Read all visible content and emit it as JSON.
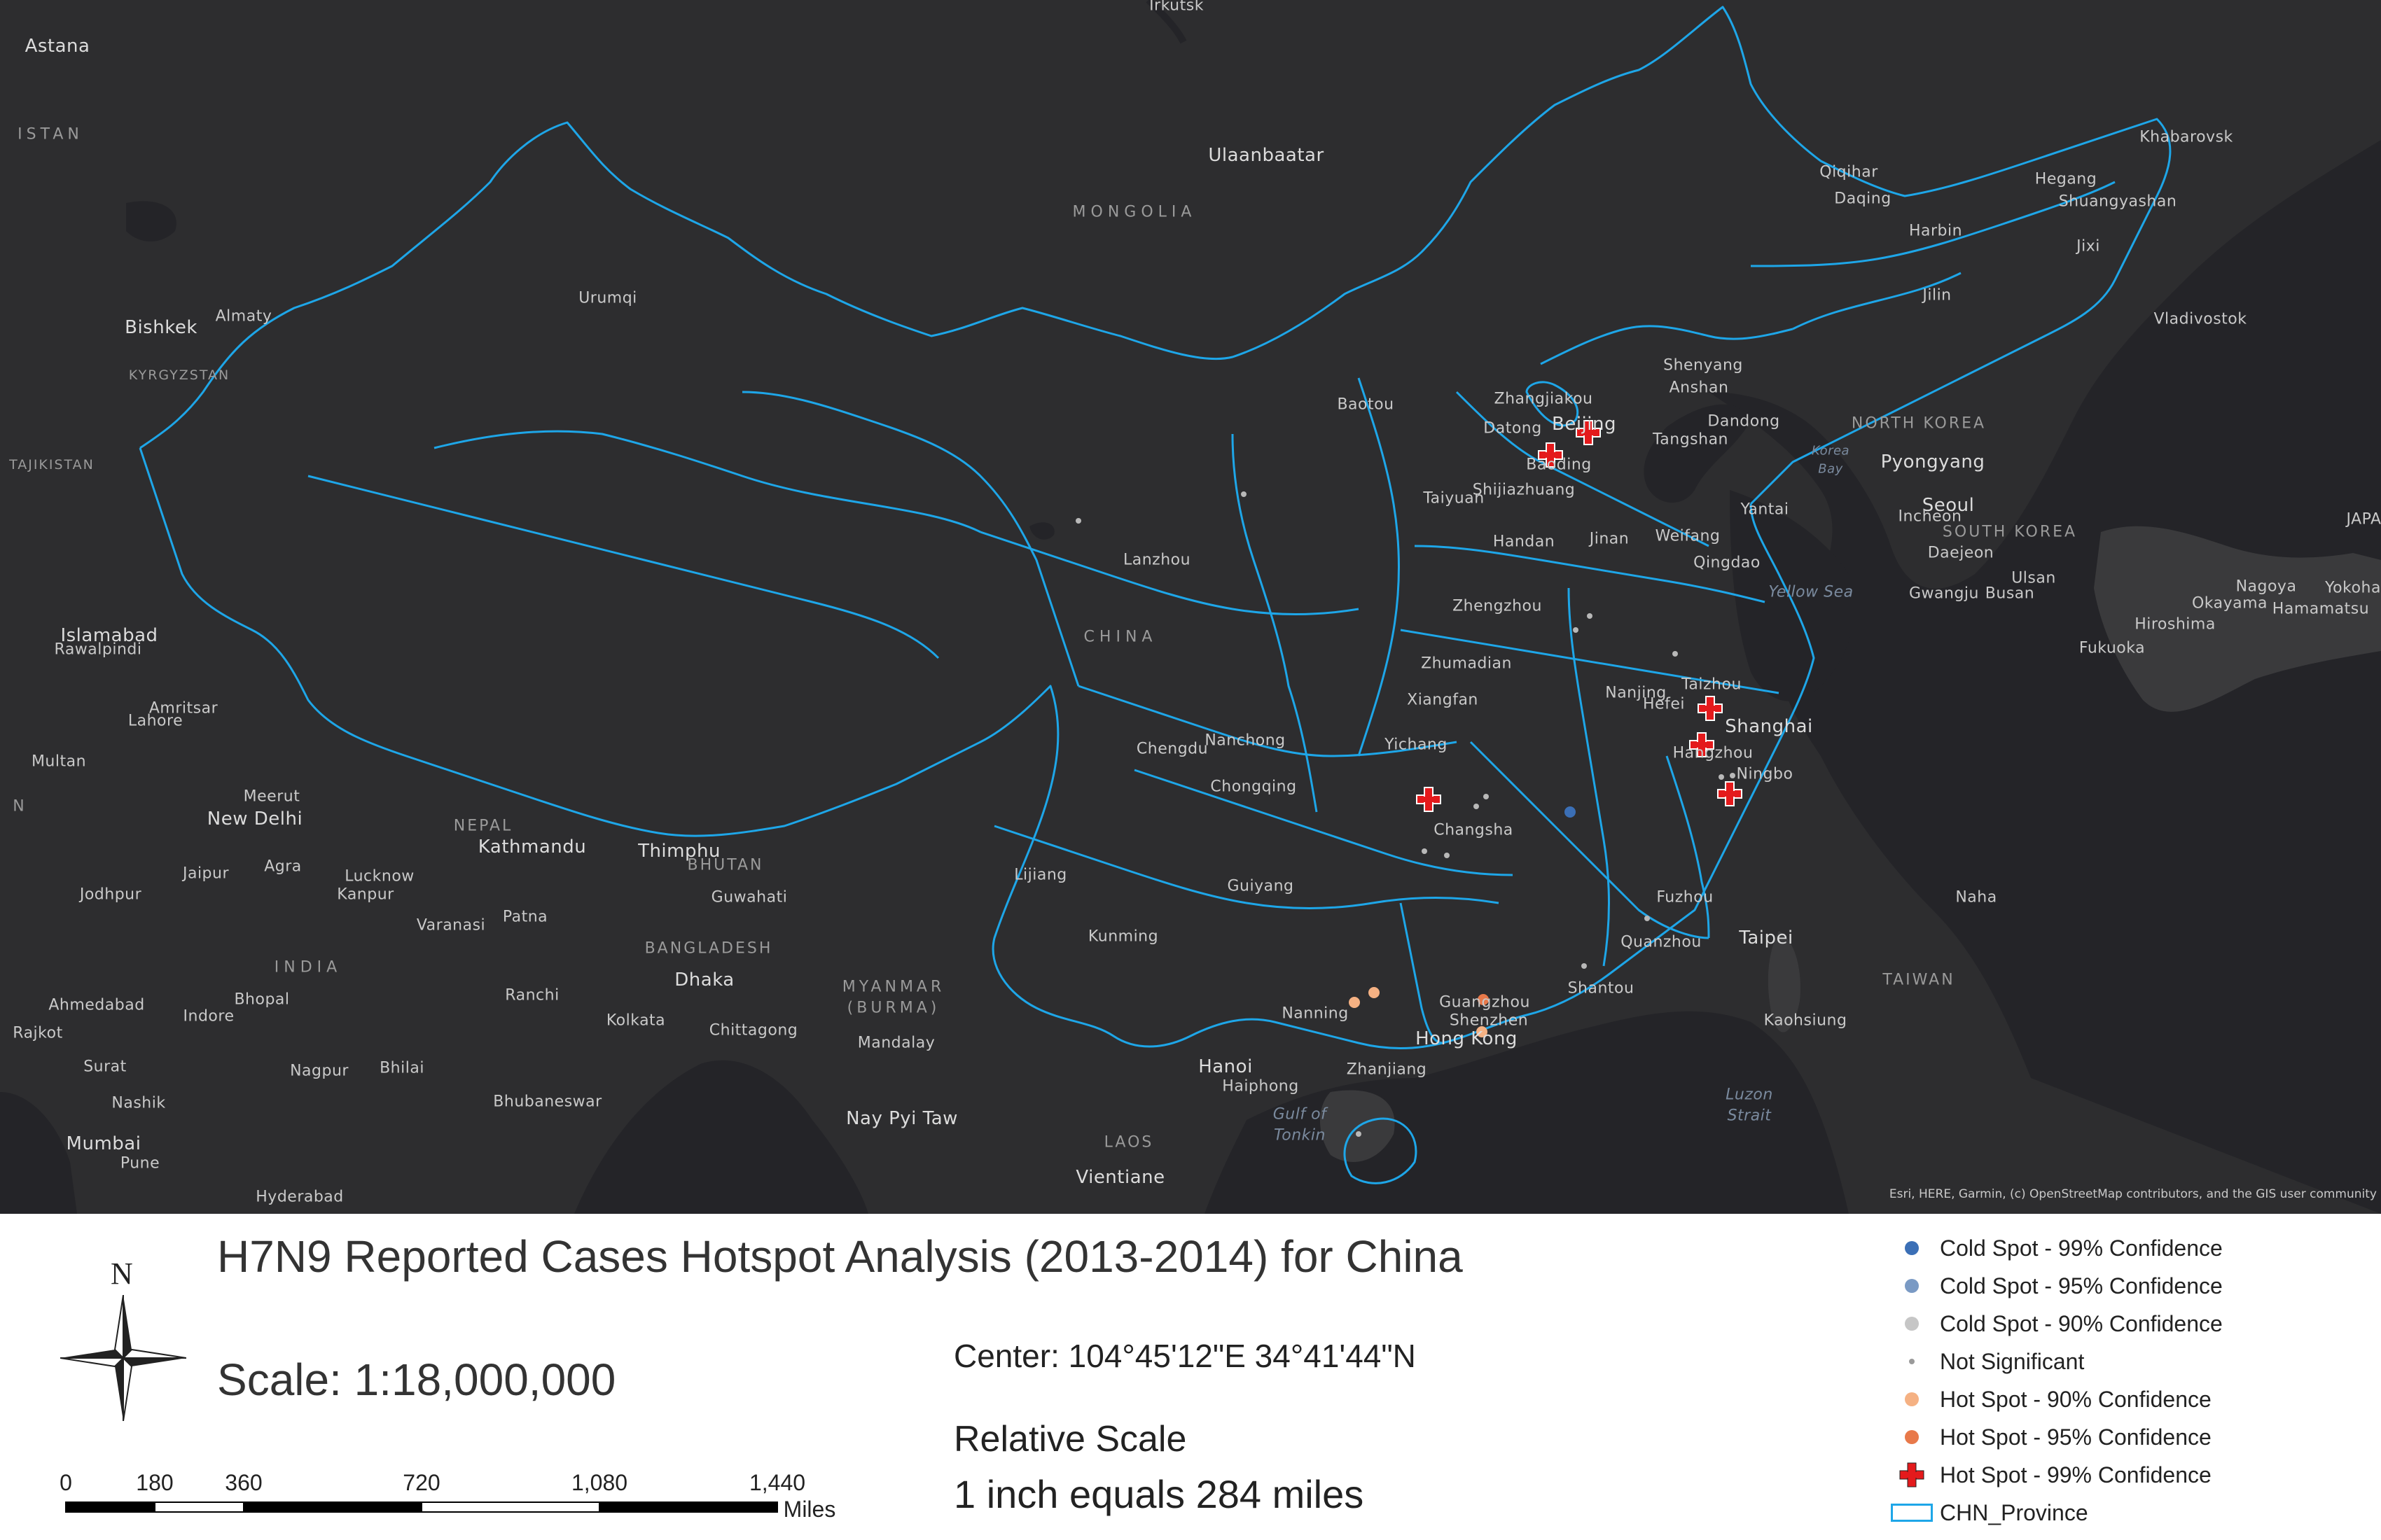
{
  "colors": {
    "map_bg": "#2d2d2f",
    "land": "#3a3a3c",
    "water": "#222226",
    "province_border": "#1ea6e8",
    "hot_99": "#e41a1c",
    "hot_95": "#e8794a",
    "hot_90": "#f5b183",
    "cold_99": "#3b6fb6",
    "cold_95": "#7a9ac4",
    "cold_90": "#c6c6c6",
    "not_significant": "#b8b8b8"
  },
  "map": {
    "attribution": "Esri, HERE, Garmin, (c) OpenStreetMap contributors, and the GIS user community",
    "country_labels": [
      "MONGOLIA",
      "CHINA",
      "INDIA",
      "NEPAL",
      "BHUTAN",
      "BANGLADESH",
      "MYANMAR",
      "(BURMA)",
      "LAOS",
      "NORTH KOREA",
      "SOUTH KOREA",
      "TAIWAN",
      "KYRGYZSTAN",
      "TAJIKISTAN",
      "ISTAN",
      "N"
    ],
    "water_labels": [
      "Yellow Sea",
      "Gulf of",
      "Tonkin",
      "Luzon",
      "Strait",
      "Korea",
      "Bay"
    ],
    "city_labels": [
      "Irkutsk",
      "Astana",
      "Ulaanbaatar",
      "Qiqihar",
      "Daqing",
      "Harbin",
      "Hegang",
      "Shuangyashan",
      "Khabarovsk",
      "Jixi",
      "Jilin",
      "Vladivostok",
      "Urumqi",
      "Almaty",
      "Bishkek",
      "Baotou",
      "Zhangjiakou",
      "Datong",
      "Beijing",
      "Tangshan",
      "Baoding",
      "Shijiazhuang",
      "Taiyuan",
      "Shenyang",
      "Anshan",
      "Dandong",
      "Pyongyang",
      "Seoul",
      "Incheon",
      "Daejeon",
      "Gwangju",
      "Ulsan",
      "Busan",
      "Lanzhou",
      "Handan",
      "Jinan",
      "Weifang",
      "Yantai",
      "Qingdao",
      "Zhengzhou",
      "Zhumadian",
      "Xiangfan",
      "Hefei",
      "Nanjing",
      "Taizhou",
      "Shanghai",
      "Hangzhou",
      "Ningbo",
      "Chengdu",
      "Nanchong",
      "Yichang",
      "Chongqing",
      "Changsha",
      "Guiyang",
      "Lijiang",
      "Kunming",
      "Fuzhou",
      "Quanzhou",
      "Shantou",
      "Taipei",
      "Kaohsiung",
      "Nanning",
      "Guangzhou",
      "Shenzhen",
      "Hong Kong",
      "Zhanjiang",
      "Hanoi",
      "Haiphong",
      "Islamabad",
      "Rawalpindi",
      "Amritsar",
      "Lahore",
      "Multan",
      "Meerut",
      "New Delhi",
      "Jaipur",
      "Agra",
      "Lucknow",
      "Kanpur",
      "Jodhpur",
      "Kathmandu",
      "Thimphu",
      "Guwahati",
      "Patna",
      "Varanasi",
      "Dhaka",
      "Ahmedabad",
      "Rajkot",
      "Bhopal",
      "Indore",
      "Ranchi",
      "Kolkata",
      "Chittagong",
      "Mandalay",
      "Surat",
      "Nagpur",
      "Bhilai",
      "Nashik",
      "Mumbai",
      "Pune",
      "Bhubaneswar",
      "Hyderabad",
      "Nay Pyi Taw",
      "Vientiane",
      "Nagoya",
      "Yokohama",
      "Hamamatsu",
      "Okayama",
      "Hiroshima",
      "Fukuoka",
      "Naha",
      "JAPAN"
    ]
  },
  "footer": {
    "title": "H7N9 Reported Cases Hotspot Analysis (2013-2014) for China",
    "scale_text": "Scale: 1:18,000,000",
    "center_text": "Center: 104°45'12\"E 34°41'44\"N",
    "relative_scale_title": "Relative Scale",
    "relative_scale_value": "1 inch equals  284 miles",
    "north_label": "N",
    "scalebar": {
      "ticks": [
        "0",
        "180",
        "360",
        "720",
        "1,080",
        "1,440"
      ],
      "tick_values": [
        0,
        180,
        360,
        720,
        1080,
        1440
      ],
      "unit": "Miles"
    }
  },
  "legend": {
    "items": [
      {
        "label": "Cold Spot - 99% Confidence",
        "symbol": "dot",
        "color": "#3b6fb6"
      },
      {
        "label": "Cold Spot - 95% Confidence",
        "symbol": "dot",
        "color": "#7a9ac4"
      },
      {
        "label": "Cold Spot - 90% Confidence",
        "symbol": "dot",
        "color": "#c6c6c6"
      },
      {
        "label": "Not Significant",
        "symbol": "small-dot",
        "color": "#9a9a9a"
      },
      {
        "label": "Hot Spot - 90% Confidence",
        "symbol": "dot",
        "color": "#f5b183"
      },
      {
        "label": "Hot Spot - 95% Confidence",
        "symbol": "dot",
        "color": "#e8794a"
      },
      {
        "label": "Hot Spot - 99% Confidence",
        "symbol": "cross",
        "color": "#e41a1c"
      },
      {
        "label": "CHN_Province",
        "symbol": "box",
        "color": "#1ea6e8"
      }
    ]
  }
}
